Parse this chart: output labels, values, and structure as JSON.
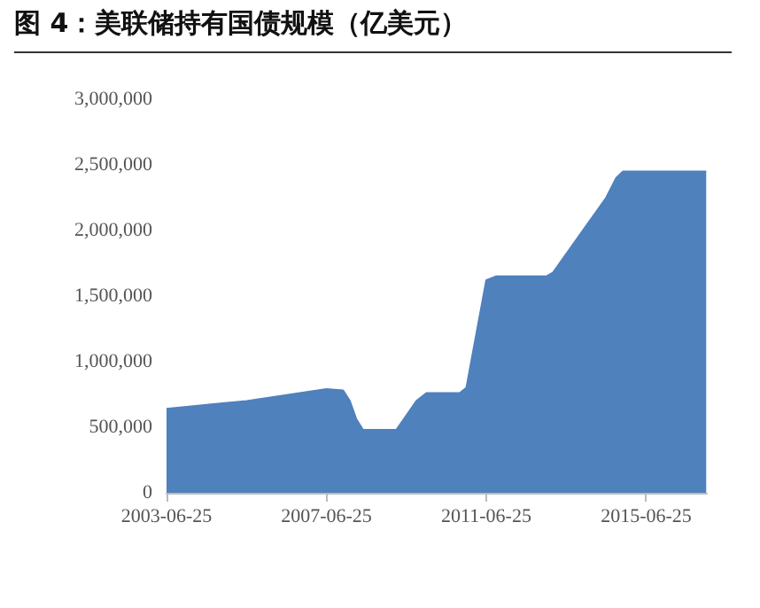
{
  "chart_data": {
    "type": "area",
    "title": "图 4：美联储持有国债规模（亿美元）",
    "x": [
      "2003-06-25",
      "2005-06-25",
      "2007-06-25",
      "2007-11-25",
      "2008-01-25",
      "2008-03-25",
      "2008-05-25",
      "2009-03-25",
      "2009-09-25",
      "2009-12-25",
      "2010-10-25",
      "2010-12-25",
      "2011-06-25",
      "2011-09-25",
      "2012-12-25",
      "2013-02-25",
      "2014-06-25",
      "2014-09-25",
      "2014-11-25",
      "2016-12-25"
    ],
    "series": [
      {
        "color": "#4f81bd",
        "values": [
          640000,
          700000,
          790000,
          780000,
          700000,
          560000,
          480000,
          480000,
          700000,
          760000,
          760000,
          800000,
          1620000,
          1650000,
          1650000,
          1680000,
          2250000,
          2400000,
          2450000,
          2450000
        ]
      }
    ],
    "xlim": [
      "2003-06-25",
      "2016-12-31"
    ],
    "xticks": [
      {
        "value": "2003-06-25",
        "label": "2003-06-25"
      },
      {
        "value": "2007-06-25",
        "label": "2007-06-25"
      },
      {
        "value": "2011-06-25",
        "label": "2011-06-25"
      },
      {
        "value": "2015-06-25",
        "label": "2015-06-25"
      }
    ],
    "ylim": [
      0,
      3000000
    ],
    "yticks": [
      {
        "value": 0,
        "label": "0"
      },
      {
        "value": 500000,
        "label": "500,000"
      },
      {
        "value": 1000000,
        "label": "1,000,000"
      },
      {
        "value": 1500000,
        "label": "1,500,000"
      },
      {
        "value": 2000000,
        "label": "2,000,000"
      },
      {
        "value": 2500000,
        "label": "2,500,000"
      },
      {
        "value": 3000000,
        "label": "3,000,000"
      }
    ],
    "grid": false
  }
}
